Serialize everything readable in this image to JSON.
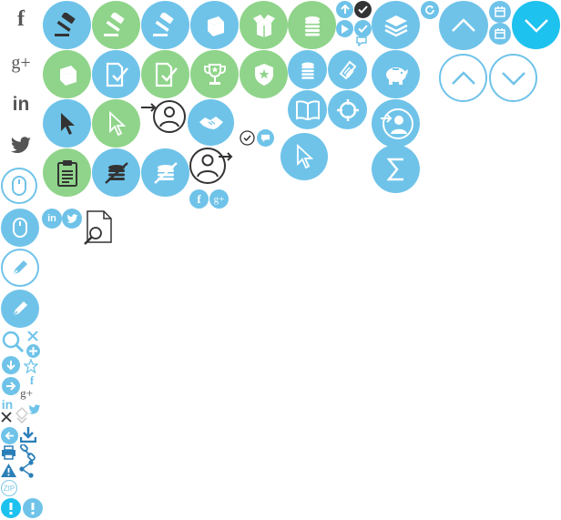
{
  "colors": {
    "blue": "#6fc3e9",
    "green": "#8fd48a",
    "cyan": "#1ec2ef",
    "dark": "#333333",
    "social": "#555555"
  },
  "social": {
    "facebook": "f",
    "googleplus": "g+",
    "linkedin": "in",
    "twitter": "twitter"
  },
  "badges": {
    "zip": "ZIP"
  },
  "icons": [
    "facebook-icon",
    "googleplus-icon",
    "linkedin-icon",
    "twitter-icon",
    "gavel-icon",
    "box-icon",
    "coins-icon",
    "layers-icon",
    "chevron-up-icon",
    "chevron-down-icon",
    "document-check-icon",
    "trophy-icon",
    "police-badge-icon",
    "handshake-icon",
    "piggy-bank-icon",
    "cursor-icon",
    "user-login-icon",
    "user-logout-icon",
    "book-icon",
    "target-icon",
    "sum-icon",
    "clipboard-icon",
    "no-coins-icon",
    "search-document-icon",
    "mouse-icon",
    "pen-icon",
    "search-icon",
    "close-icon",
    "plus-icon",
    "star-icon",
    "download-icon",
    "arrow-right-icon",
    "arrow-left-icon",
    "print-icon",
    "link-icon",
    "warning-icon",
    "share-icon",
    "info-icon",
    "calendar-icon",
    "refresh-icon",
    "check-icon",
    "comment-icon",
    "play-icon",
    "arrow-up-icon"
  ]
}
